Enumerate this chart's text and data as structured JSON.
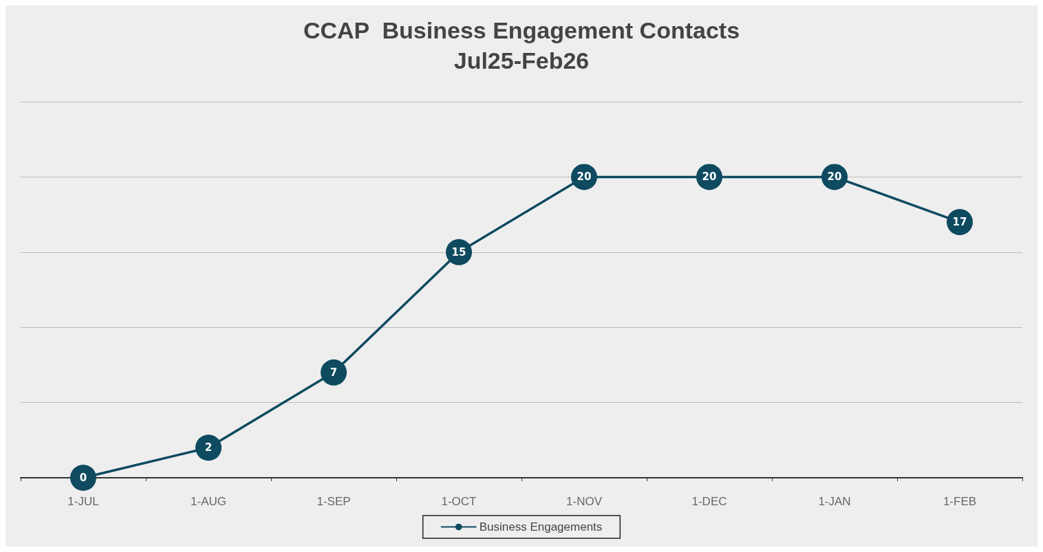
{
  "chart_data": {
    "type": "line",
    "title": "CCAP  Business Engagement Contacts",
    "subtitle": "Jul25-Feb26",
    "categories": [
      "1-JUL",
      "1-AUG",
      "1-SEP",
      "1-OCT",
      "1-NOV",
      "1-DEC",
      "1-JAN",
      "1-FEB"
    ],
    "series": [
      {
        "name": "Business Engagements",
        "color": "#0e4a60",
        "values": [
          0,
          2,
          7,
          15,
          20,
          20,
          20,
          17
        ]
      }
    ],
    "ylim": [
      0,
      25
    ],
    "yticks": [
      {
        "value": 0,
        "label": null
      },
      {
        "value": 5,
        "label": null
      },
      {
        "value": 10,
        "label": null
      },
      {
        "value": 15,
        "label": null
      },
      {
        "value": 20,
        "label": null
      },
      {
        "value": 25,
        "label": null
      }
    ],
    "grid": "y",
    "legend": "bottom",
    "marker": "circle",
    "line_style": "solid",
    "data_labels": true,
    "tick_labels": "x"
  }
}
